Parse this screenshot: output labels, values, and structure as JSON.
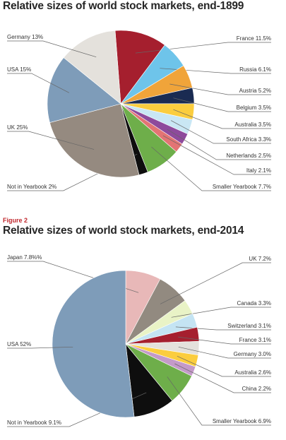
{
  "chart_data": [
    {
      "type": "pie",
      "title": "Relative sizes of world stock markets, end-1899",
      "slices": [
        {
          "label": "France 11.5%",
          "value": 11.5,
          "color": "#a51f2e"
        },
        {
          "label": "Russia 6.1%",
          "value": 6.1,
          "color": "#6ec4ea"
        },
        {
          "label": "Austria 5.2%",
          "value": 5.2,
          "color": "#f0a43a"
        },
        {
          "label": "Belgium 3.5%",
          "value": 3.5,
          "color": "#1a2b52"
        },
        {
          "label": "Australia 3.5%",
          "value": 3.5,
          "color": "#fbcd3e"
        },
        {
          "label": "South Africa 3.3%",
          "value": 3.3,
          "color": "#c9e7f4"
        },
        {
          "label": "Netherlands 2.5%",
          "value": 2.5,
          "color": "#8e4a9c"
        },
        {
          "label": "Italy 2.1%",
          "value": 2.1,
          "color": "#e37474"
        },
        {
          "label": "Smaller Yearbook 7.7%",
          "value": 7.7,
          "color": "#6eae4a"
        },
        {
          "label": "Not in Yearbook 2%",
          "value": 2.0,
          "color": "#0e0e0e"
        },
        {
          "label": "UK 25%",
          "value": 25.0,
          "color": "#958a80"
        },
        {
          "label": "USA 15%",
          "value": 15.0,
          "color": "#7e9cb9"
        },
        {
          "label": "Germany 13%",
          "value": 13.0,
          "color": "#e4e1dc"
        }
      ]
    },
    {
      "type": "pie",
      "title": "Relative sizes of world stock markets, end-2014",
      "slices": [
        {
          "label": "Japan 7.8%%",
          "value": 7.8,
          "color": "#e8b8b8"
        },
        {
          "label": "UK 7.2%",
          "value": 7.2,
          "color": "#928a80"
        },
        {
          "label": "Canada 3.3%",
          "value": 3.3,
          "color": "#e9f3c6"
        },
        {
          "label": "Switzerland 3.1%",
          "value": 3.1,
          "color": "#c4e4f3"
        },
        {
          "label": "France 3.1%",
          "value": 3.1,
          "color": "#a51f2e"
        },
        {
          "label": "Germany 3.0%",
          "value": 3.0,
          "color": "#e4e1dc"
        },
        {
          "label": "Australia 2.6%",
          "value": 2.6,
          "color": "#fbcd3e"
        },
        {
          "label": "China 2.2%",
          "value": 2.2,
          "color": "#c49ac9"
        },
        {
          "label": "Smaller Yearbook 6.9%",
          "value": 6.9,
          "color": "#6eae4a"
        },
        {
          "label": "Not in Yearbook 9.1%",
          "value": 9.1,
          "color": "#0e0e0e"
        },
        {
          "label": "USA 52%",
          "value": 52.0,
          "color": "#7e9cb9"
        }
      ]
    }
  ],
  "figure2_label": "Figure 2"
}
